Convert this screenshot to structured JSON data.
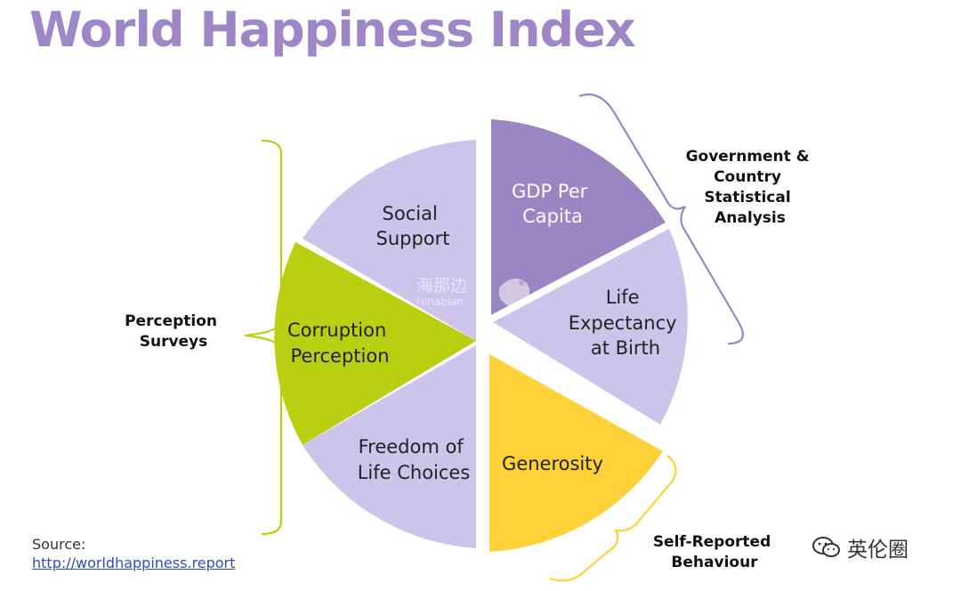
{
  "title": "World Happiness Index",
  "segments": [
    {
      "id": "gdp",
      "lines": [
        "GDP Per",
        "Capita"
      ],
      "color": "#9b86c3",
      "text_color": "#ffffff"
    },
    {
      "id": "life",
      "lines": [
        "Life",
        "Expectancy",
        "at Birth"
      ],
      "color": "#cdc4ec",
      "text_color": "#222222"
    },
    {
      "id": "generosity",
      "lines": [
        "Generosity"
      ],
      "color": "#fdd137",
      "text_color": "#222222"
    },
    {
      "id": "freedom",
      "lines": [
        "Freedom of",
        "Life Choices"
      ],
      "color": "#cdc4ec",
      "text_color": "#222222"
    },
    {
      "id": "corruption",
      "lines": [
        "Corruption",
        "Perception"
      ],
      "color": "#b8cf12",
      "text_color": "#222222"
    },
    {
      "id": "social",
      "lines": [
        "Social",
        "Support"
      ],
      "color": "#cdc4ec",
      "text_color": "#222222"
    }
  ],
  "groups": [
    {
      "id": "government",
      "lines": [
        "Government &",
        "Country",
        "Statistical",
        "Analysis"
      ],
      "bracket_color": "#9b86c3"
    },
    {
      "id": "perception",
      "lines": [
        "Perception",
        "Surveys"
      ],
      "bracket_color": "#b8cf12"
    },
    {
      "id": "self-reported",
      "lines": [
        "Self-Reported",
        "Behaviour"
      ],
      "bracket_color": "#fdd137"
    }
  ],
  "source": {
    "label": "Source:",
    "link": "http://worldhappiness.report"
  },
  "watermark": {
    "brand": "英伦圈",
    "center_cn": "海那边",
    "center_en": "Hinabian"
  }
}
